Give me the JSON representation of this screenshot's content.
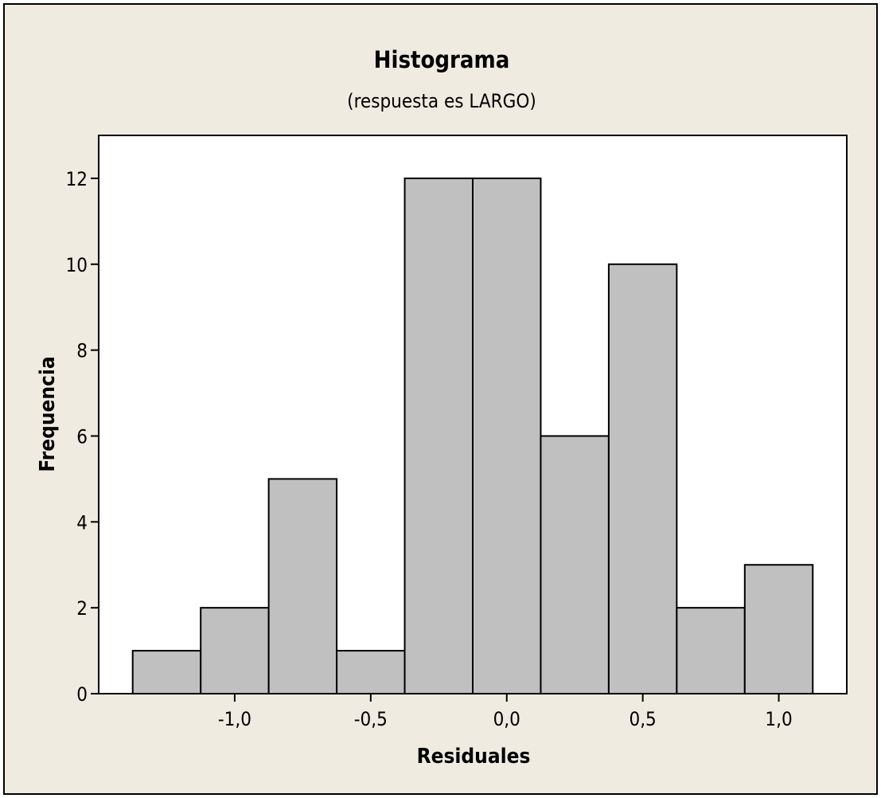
{
  "chart_data": {
    "type": "bar",
    "title": "Histograma",
    "subtitle": "(respuesta es  LARGO)",
    "xlabel": "Residuales",
    "ylabel": "Frequencia",
    "bin_width": 0.25,
    "bins": [
      {
        "start": -1.375,
        "end": -1.125,
        "value": 1
      },
      {
        "start": -1.125,
        "end": -0.875,
        "value": 2
      },
      {
        "start": -0.875,
        "end": -0.625,
        "value": 5
      },
      {
        "start": -0.625,
        "end": -0.375,
        "value": 1
      },
      {
        "start": -0.375,
        "end": -0.125,
        "value": 12
      },
      {
        "start": -0.125,
        "end": 0.125,
        "value": 12
      },
      {
        "start": 0.125,
        "end": 0.375,
        "value": 6
      },
      {
        "start": 0.375,
        "end": 0.625,
        "value": 10
      },
      {
        "start": 0.625,
        "end": 0.875,
        "value": 2
      },
      {
        "start": 0.875,
        "end": 1.125,
        "value": 3
      }
    ],
    "xlim": [
      -1.5,
      1.25
    ],
    "ylim": [
      0,
      13.0
    ],
    "xticks": [
      {
        "value": -1.0,
        "label": "-1,0"
      },
      {
        "value": -0.5,
        "label": "-0,5"
      },
      {
        "value": 0.0,
        "label": "0,0"
      },
      {
        "value": 0.5,
        "label": "0,5"
      },
      {
        "value": 1.0,
        "label": "1,0"
      }
    ],
    "yticks": [
      {
        "value": 0,
        "label": "0"
      },
      {
        "value": 2,
        "label": "2"
      },
      {
        "value": 4,
        "label": "4"
      },
      {
        "value": 6,
        "label": "6"
      },
      {
        "value": 8,
        "label": "8"
      },
      {
        "value": 10,
        "label": "10"
      },
      {
        "value": 12,
        "label": "12"
      }
    ],
    "grid": false,
    "legend": "none",
    "colors": {
      "outer_background": "#f0ebe0",
      "plot_background": "#ffffff",
      "bar_fill": "#c0c0c0",
      "bar_stroke": "#000000"
    }
  }
}
